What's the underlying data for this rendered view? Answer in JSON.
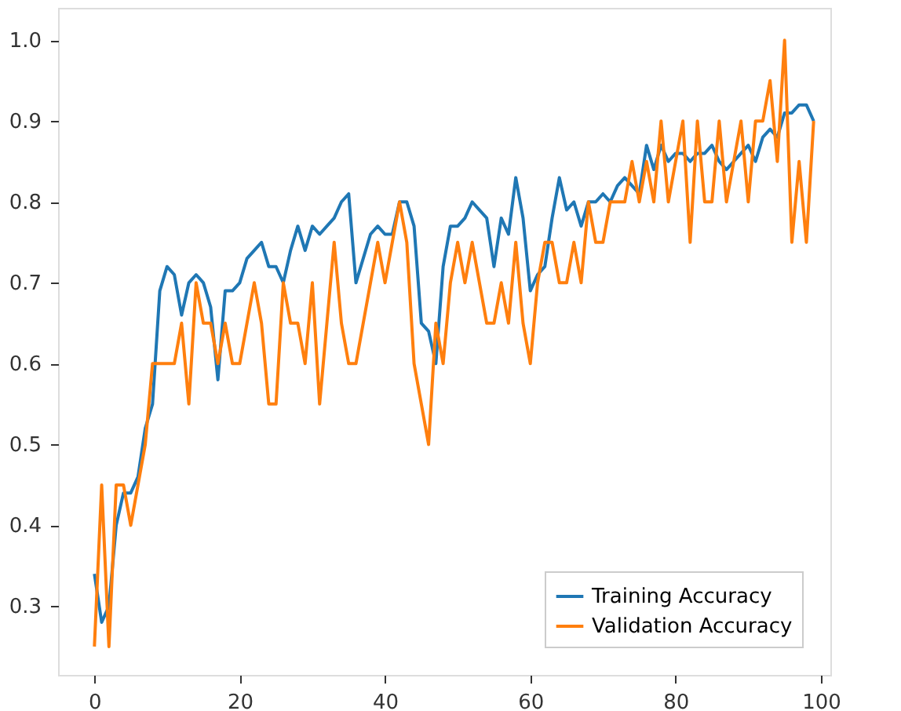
{
  "chart_data": {
    "type": "line",
    "x": [
      0,
      1,
      2,
      3,
      4,
      5,
      6,
      7,
      8,
      9,
      10,
      11,
      12,
      13,
      14,
      15,
      16,
      17,
      18,
      19,
      20,
      21,
      22,
      23,
      24,
      25,
      26,
      27,
      28,
      29,
      30,
      31,
      32,
      33,
      34,
      35,
      36,
      37,
      38,
      39,
      40,
      41,
      42,
      43,
      44,
      45,
      46,
      47,
      48,
      49,
      50,
      51,
      52,
      53,
      54,
      55,
      56,
      57,
      58,
      59,
      60,
      61,
      62,
      63,
      64,
      65,
      66,
      67,
      68,
      69,
      70,
      71,
      72,
      73,
      74,
      75,
      76,
      77,
      78,
      79,
      80,
      81,
      82,
      83,
      84,
      85,
      86,
      87,
      88,
      89,
      90,
      91,
      92,
      93,
      94,
      95,
      96,
      97,
      98,
      99
    ],
    "series": [
      {
        "name": "Training Accuracy",
        "color": "#1f77b4",
        "values": [
          0.34,
          0.28,
          0.3,
          0.4,
          0.44,
          0.44,
          0.46,
          0.52,
          0.55,
          0.69,
          0.72,
          0.71,
          0.66,
          0.7,
          0.71,
          0.7,
          0.67,
          0.58,
          0.69,
          0.69,
          0.7,
          0.73,
          0.74,
          0.75,
          0.72,
          0.72,
          0.7,
          0.74,
          0.77,
          0.74,
          0.77,
          0.76,
          0.77,
          0.78,
          0.8,
          0.81,
          0.7,
          0.73,
          0.76,
          0.77,
          0.76,
          0.76,
          0.8,
          0.8,
          0.77,
          0.65,
          0.64,
          0.6,
          0.72,
          0.77,
          0.77,
          0.78,
          0.8,
          0.79,
          0.78,
          0.72,
          0.78,
          0.76,
          0.83,
          0.78,
          0.69,
          0.71,
          0.72,
          0.78,
          0.83,
          0.79,
          0.8,
          0.77,
          0.8,
          0.8,
          0.81,
          0.8,
          0.82,
          0.83,
          0.82,
          0.81,
          0.87,
          0.84,
          0.87,
          0.85,
          0.86,
          0.86,
          0.85,
          0.86,
          0.86,
          0.87,
          0.85,
          0.84,
          0.85,
          0.86,
          0.87,
          0.85,
          0.88,
          0.89,
          0.88,
          0.91,
          0.91,
          0.92,
          0.92,
          0.9
        ]
      },
      {
        "name": "Validation Accuracy",
        "color": "#ff7f0e",
        "values": [
          0.25,
          0.45,
          0.25,
          0.45,
          0.45,
          0.4,
          0.45,
          0.5,
          0.6,
          0.6,
          0.6,
          0.6,
          0.65,
          0.55,
          0.7,
          0.65,
          0.65,
          0.6,
          0.65,
          0.6,
          0.6,
          0.65,
          0.7,
          0.65,
          0.55,
          0.55,
          0.7,
          0.65,
          0.65,
          0.6,
          0.7,
          0.55,
          0.65,
          0.75,
          0.65,
          0.6,
          0.6,
          0.65,
          0.7,
          0.75,
          0.7,
          0.75,
          0.8,
          0.75,
          0.6,
          0.55,
          0.5,
          0.65,
          0.6,
          0.7,
          0.75,
          0.7,
          0.75,
          0.7,
          0.65,
          0.65,
          0.7,
          0.65,
          0.75,
          0.65,
          0.6,
          0.7,
          0.75,
          0.75,
          0.7,
          0.7,
          0.75,
          0.7,
          0.8,
          0.75,
          0.75,
          0.8,
          0.8,
          0.8,
          0.85,
          0.8,
          0.85,
          0.8,
          0.9,
          0.8,
          0.85,
          0.9,
          0.75,
          0.9,
          0.8,
          0.8,
          0.9,
          0.8,
          0.85,
          0.9,
          0.8,
          0.9,
          0.9,
          0.95,
          0.85,
          1.0,
          0.75,
          0.85,
          0.75,
          0.9
        ]
      }
    ],
    "xlim": [
      -5,
      101.3
    ],
    "xticks": [
      0,
      20,
      40,
      60,
      80,
      100
    ],
    "ylim": [
      0.215,
      1.04
    ],
    "yticks": [
      0.3,
      0.4,
      0.5,
      0.6,
      0.7,
      0.8,
      0.9,
      {
        "value": 1.0,
        "label": "1.0"
      }
    ],
    "legend": "bottom right",
    "grid": false,
    "marker": "none",
    "line_style": "solid"
  }
}
